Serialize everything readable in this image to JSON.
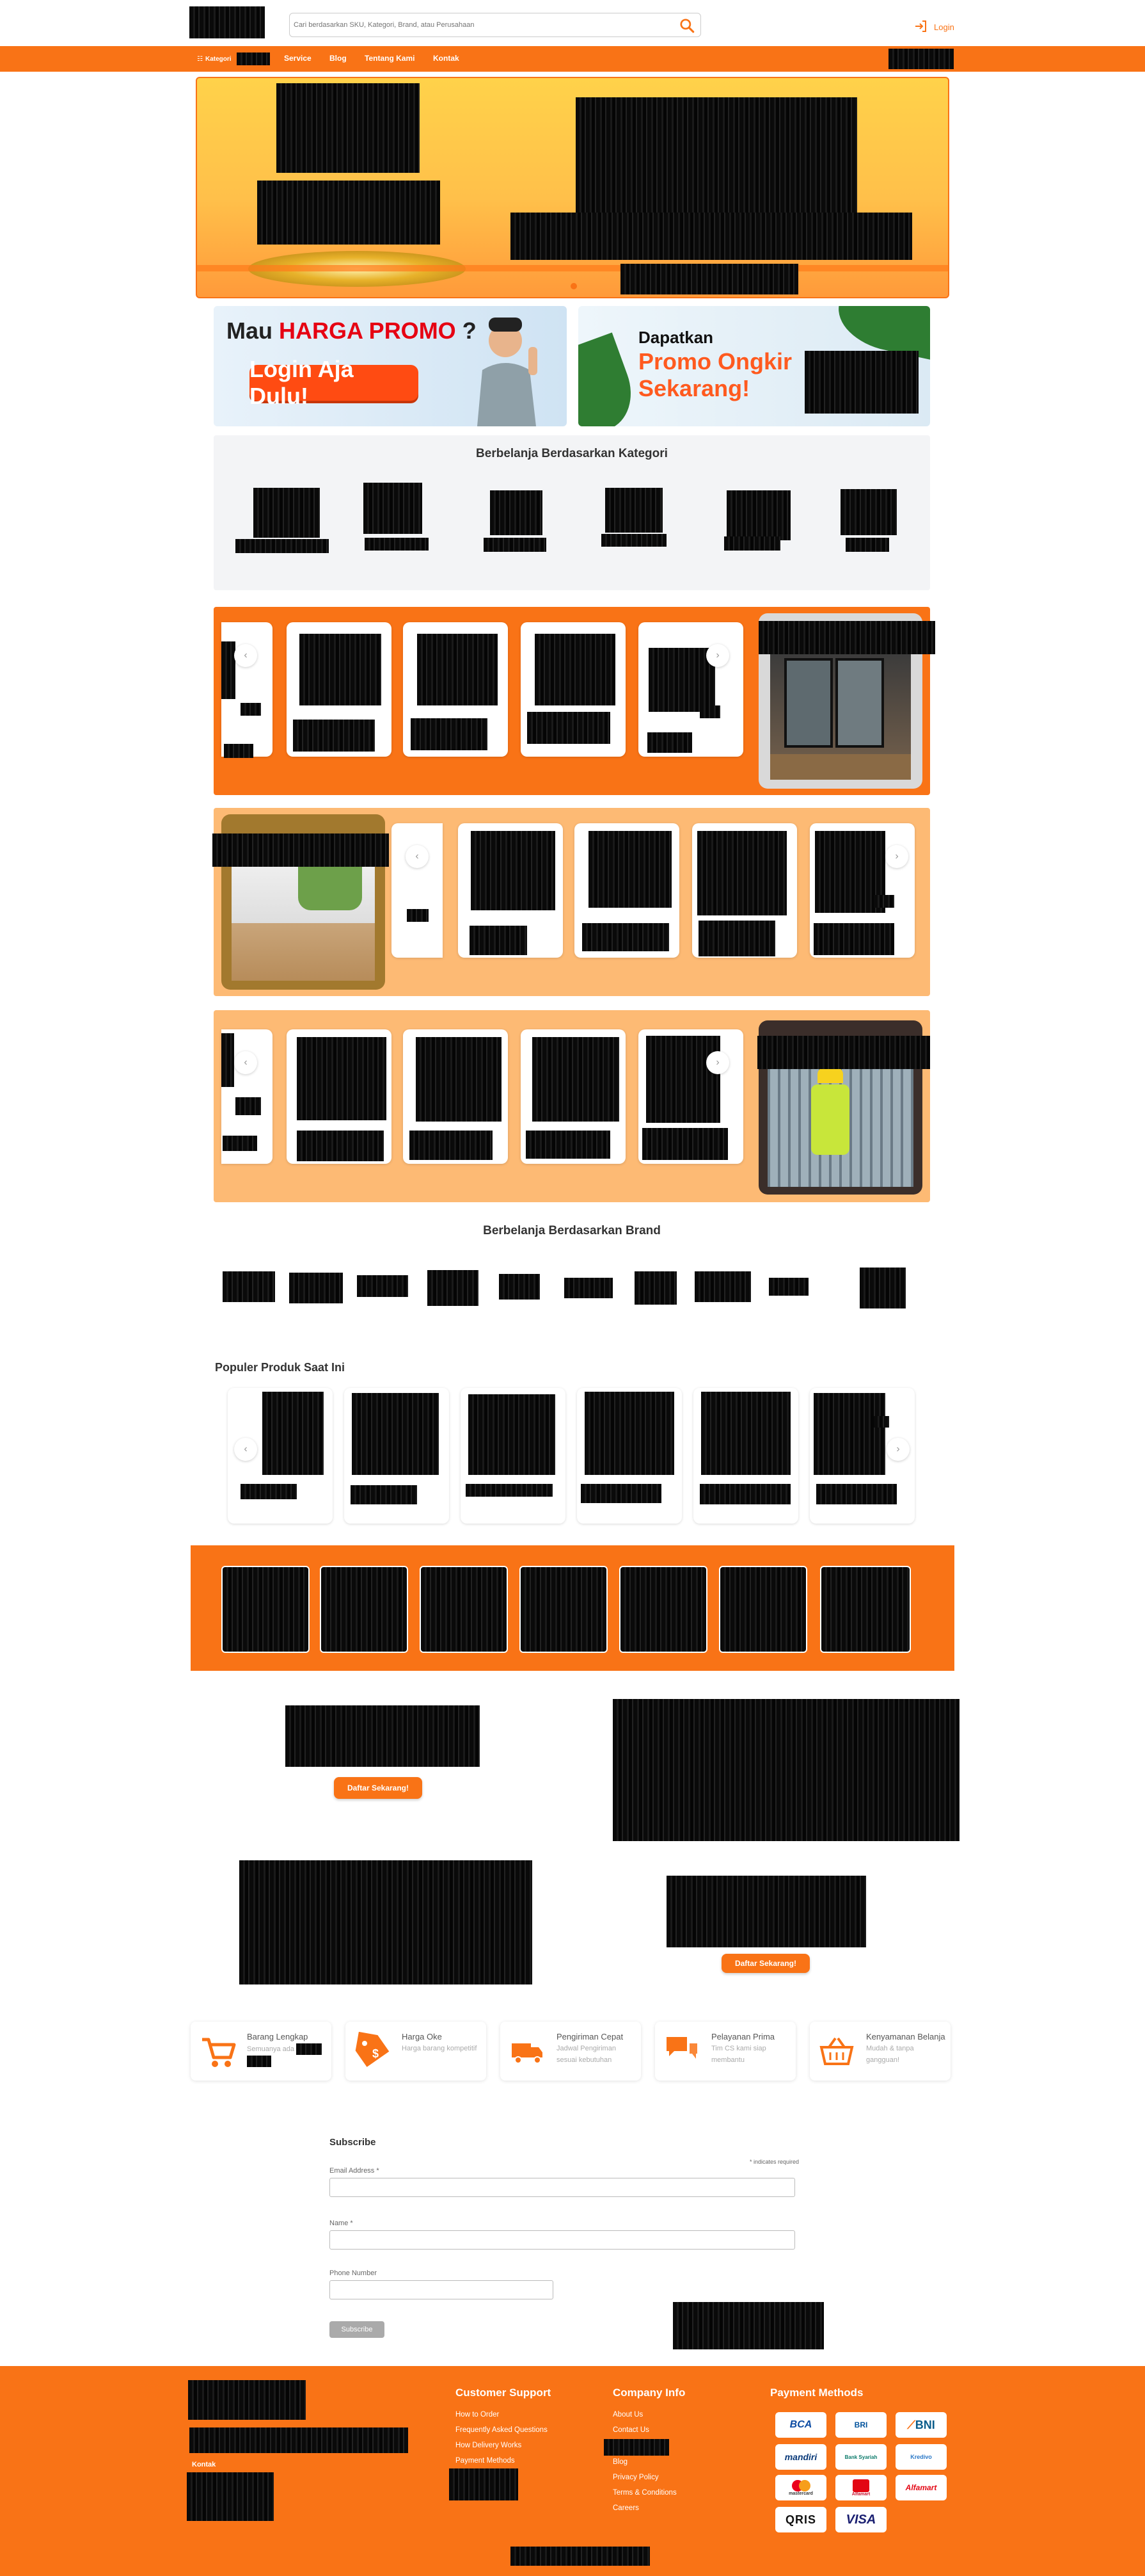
{
  "header": {
    "search_placeholder": "Cari berdasarkan SKU, Kategori, Brand, atau Perusahaan",
    "login_label": "Login"
  },
  "nav": {
    "items": [
      {
        "label": "Kategori"
      },
      {
        "label": "Service"
      },
      {
        "label": "Blog"
      },
      {
        "label": "Tentang Kami"
      },
      {
        "label": "Kontak"
      }
    ]
  },
  "promo": {
    "left_prefix": "Mau ",
    "left_highlight": "HARGA PROMO",
    "left_suffix": " ?",
    "left_button": "Login Aja Dulu!",
    "right_line1": "Dapatkan",
    "right_line2": "Promo Ongkir",
    "right_line3": "Sekarang!"
  },
  "sections": {
    "kategori_title": "Berbelanja Berdasarkan Kategori",
    "brand_title": "Berbelanja Berdasarkan Brand",
    "populer_title": "Populer Produk Saat Ini"
  },
  "cta": {
    "button_label": "Daftar Sekarang!"
  },
  "features": [
    {
      "icon": "cart-icon",
      "title": "Barang Lengkap",
      "desc": "Semuanya ada"
    },
    {
      "icon": "price-tag-icon",
      "title": "Harga Oke",
      "desc": "Harga barang kompetitif"
    },
    {
      "icon": "truck-icon",
      "title": "Pengiriman Cepat",
      "desc": "Jadwal Pengiriman sesuai kebutuhan"
    },
    {
      "icon": "chat-icon",
      "title": "Pelayanan Prima",
      "desc": "Tim CS kami siap membantu"
    },
    {
      "icon": "basket-icon",
      "title": "Kenyamanan Belanja",
      "desc": "Mudah & tanpa gangguan!"
    }
  ],
  "subscribe": {
    "title": "Subscribe",
    "required_note": "* indicates required",
    "email_label": "Email Address *",
    "name_label": "Name *",
    "phone_label": "Phone Number",
    "button_label": "Subscribe"
  },
  "footer": {
    "address_label": "Kontak",
    "customer_support": {
      "title": "Customer Support",
      "links": [
        "How to Order",
        "Frequently Asked Questions",
        "How Delivery Works",
        "Payment Methods"
      ]
    },
    "company_info": {
      "title": "Company Info",
      "links": [
        "About Us",
        "Contact Us",
        "Blog",
        "Privacy Policy",
        "Terms & Conditions",
        "Careers"
      ]
    },
    "payment_methods": {
      "title": "Payment Methods",
      "items": [
        "BCA",
        "BRI",
        "BNI",
        "mandiri",
        "Bank Syariah",
        "Kredivo",
        "mastercard",
        "Alfamart",
        "Alfamart",
        "QRIS",
        "VISA"
      ]
    }
  },
  "colors": {
    "brand_orange": "#f97316",
    "light_orange": "#fdba74",
    "panel_grey": "#f3f4f6"
  }
}
